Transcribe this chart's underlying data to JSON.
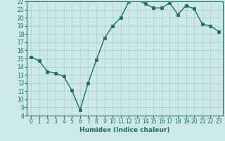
{
  "x": [
    0,
    1,
    2,
    3,
    4,
    5,
    6,
    7,
    8,
    9,
    10,
    11,
    12,
    13,
    14,
    15,
    16,
    17,
    18,
    19,
    20,
    21,
    22,
    23
  ],
  "y": [
    15.2,
    14.7,
    13.4,
    13.2,
    12.8,
    11.1,
    8.7,
    12.0,
    14.8,
    17.5,
    19.0,
    20.0,
    22.0,
    22.2,
    21.7,
    21.2,
    21.2,
    21.8,
    20.4,
    21.5,
    21.1,
    19.2,
    19.0,
    18.3
  ],
  "xlabel": "Humidex (Indice chaleur)",
  "bg_color": "#cce8e8",
  "line_color": "#1a7060",
  "grid_color": "#aacccc",
  "ylim": [
    8,
    22
  ],
  "xlim_min": -0.5,
  "xlim_max": 23.5,
  "yticks": [
    8,
    9,
    10,
    11,
    12,
    13,
    14,
    15,
    16,
    17,
    18,
    19,
    20,
    21,
    22
  ],
  "xticks": [
    0,
    1,
    2,
    3,
    4,
    5,
    6,
    7,
    8,
    9,
    10,
    11,
    12,
    13,
    14,
    15,
    16,
    17,
    18,
    19,
    20,
    21,
    22,
    23
  ],
  "xtick_labels": [
    "0",
    "1",
    "2",
    "3",
    "4",
    "5",
    "6",
    "7",
    "8",
    "9",
    "10",
    "11",
    "12",
    "13",
    "14",
    "15",
    "16",
    "17",
    "18",
    "19",
    "20",
    "21",
    "22",
    "23"
  ],
  "ytick_labels": [
    "8",
    "9",
    "10",
    "11",
    "12",
    "13",
    "14",
    "15",
    "16",
    "17",
    "18",
    "19",
    "20",
    "21",
    "22"
  ],
  "tick_fontsize": 5.5,
  "xlabel_fontsize": 6.5,
  "linewidth": 1.0,
  "markersize": 2.5
}
